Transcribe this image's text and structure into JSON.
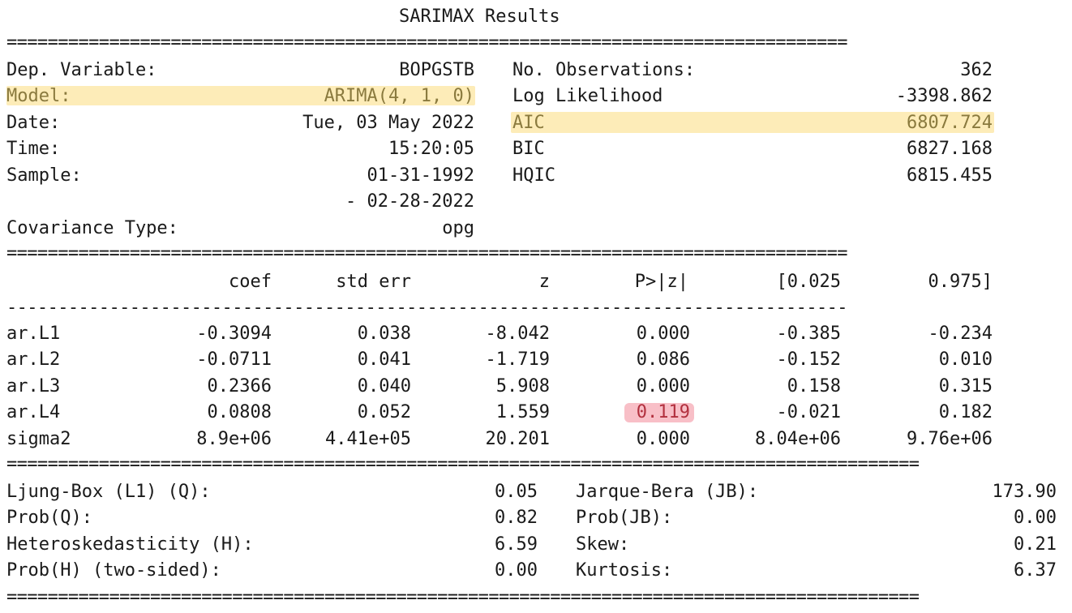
{
  "title": "SARIMAX Results",
  "separators": {
    "double": "==================================================================================",
    "double_wide": "=========================================================================================",
    "single": "----------------------------------------------------------------------------------"
  },
  "info_left": [
    {
      "label": "Dep. Variable:",
      "value": "BOPGSTB"
    },
    {
      "label": "Model:",
      "value": "ARIMA(4, 1, 0)"
    },
    {
      "label": "Date:",
      "value": "Tue, 03 May 2022"
    },
    {
      "label": "Time:",
      "value": "15:20:05"
    },
    {
      "label": "Sample:",
      "value": "01-31-1992"
    },
    {
      "label": "",
      "value": "- 02-28-2022"
    },
    {
      "label": "Covariance Type:",
      "value": "opg"
    }
  ],
  "info_right": [
    {
      "label": "No. Observations:",
      "value": "362"
    },
    {
      "label": "Log Likelihood",
      "value": "-3398.862"
    },
    {
      "label": "AIC",
      "value": "6807.724"
    },
    {
      "label": "BIC",
      "value": "6827.168"
    },
    {
      "label": "HQIC",
      "value": "6815.455"
    }
  ],
  "coef_table": {
    "headers": [
      "coef",
      "std err",
      "z",
      "P>|z|",
      "[0.025",
      "0.975]"
    ],
    "rows": [
      {
        "name": "ar.L1",
        "values": [
          "-0.3094",
          "0.038",
          "-8.042",
          "0.000",
          "-0.385",
          "-0.234"
        ]
      },
      {
        "name": "ar.L2",
        "values": [
          "-0.0711",
          "0.041",
          "-1.719",
          "0.086",
          "-0.152",
          "0.010"
        ]
      },
      {
        "name": "ar.L3",
        "values": [
          "0.2366",
          "0.040",
          "5.908",
          "0.000",
          "0.158",
          "0.315"
        ]
      },
      {
        "name": "ar.L4",
        "values": [
          "0.0808",
          "0.052",
          "1.559",
          "0.119",
          "-0.021",
          "0.182"
        ]
      },
      {
        "name": "sigma2",
        "values": [
          "8.9e+06",
          "4.41e+05",
          "20.201",
          "0.000",
          "8.04e+06",
          "9.76e+06"
        ]
      }
    ]
  },
  "diagnostics_left": [
    {
      "label": "Ljung-Box (L1) (Q):",
      "value": "0.05"
    },
    {
      "label": "Prob(Q):",
      "value": "0.82"
    },
    {
      "label": "Heteroskedasticity (H):",
      "value": "6.59"
    },
    {
      "label": "Prob(H) (two-sided):",
      "value": "0.00"
    }
  ],
  "diagnostics_right": [
    {
      "label": "Jarque-Bera (JB):",
      "value": "173.90"
    },
    {
      "label": "Prob(JB):",
      "value": "0.00"
    },
    {
      "label": "Skew:",
      "value": "0.21"
    },
    {
      "label": "Kurtosis:",
      "value": "6.37"
    }
  ],
  "highlight_colors": {
    "yellow": "#fdeab0",
    "pink": "#f6a9b4"
  }
}
